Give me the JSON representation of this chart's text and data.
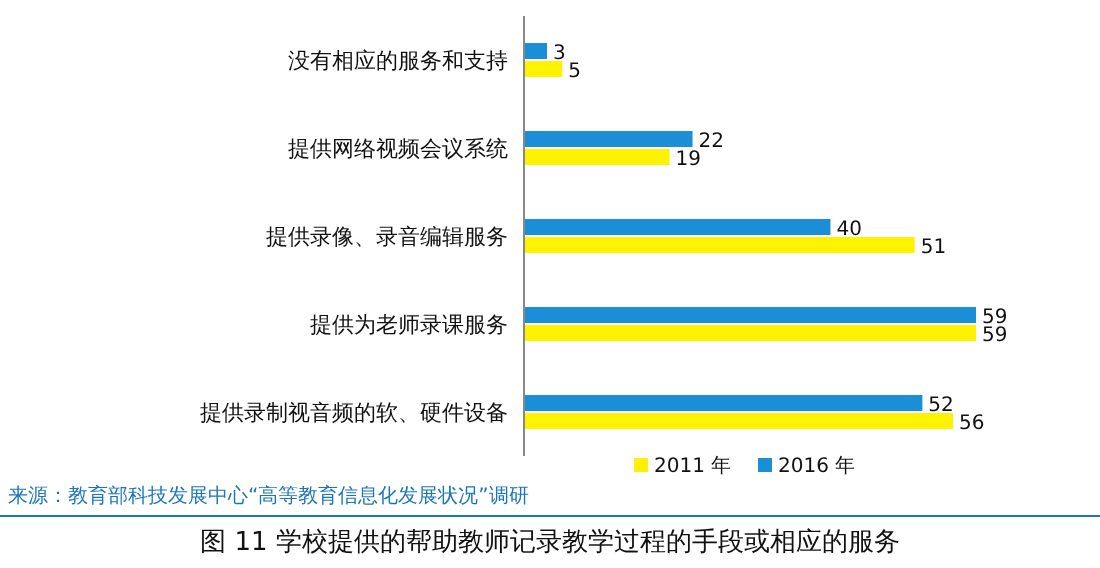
{
  "chart_data": {
    "type": "bar",
    "orientation": "horizontal",
    "title": "图 11  学校提供的帮助教师记录教学过程的手段或相应的服务",
    "categories": [
      "没有相应的服务和支持",
      "提供网络视频会议系统",
      "提供录像、录音编辑服务",
      "提供为老师录课服务",
      "提供录制视音频的软、硬件设备"
    ],
    "series": [
      {
        "name": "2011 年",
        "color": "#fff200",
        "values": [
          5,
          19,
          51,
          59,
          56
        ]
      },
      {
        "name": "2016 年",
        "color": "#1b8fd6",
        "values": [
          3,
          22,
          40,
          59,
          52
        ]
      }
    ],
    "data_labels": true,
    "legend": "bottom",
    "annotations": [
      "来源：教育部科技发展中心“高等教育信息化发展状况”调研"
    ]
  }
}
